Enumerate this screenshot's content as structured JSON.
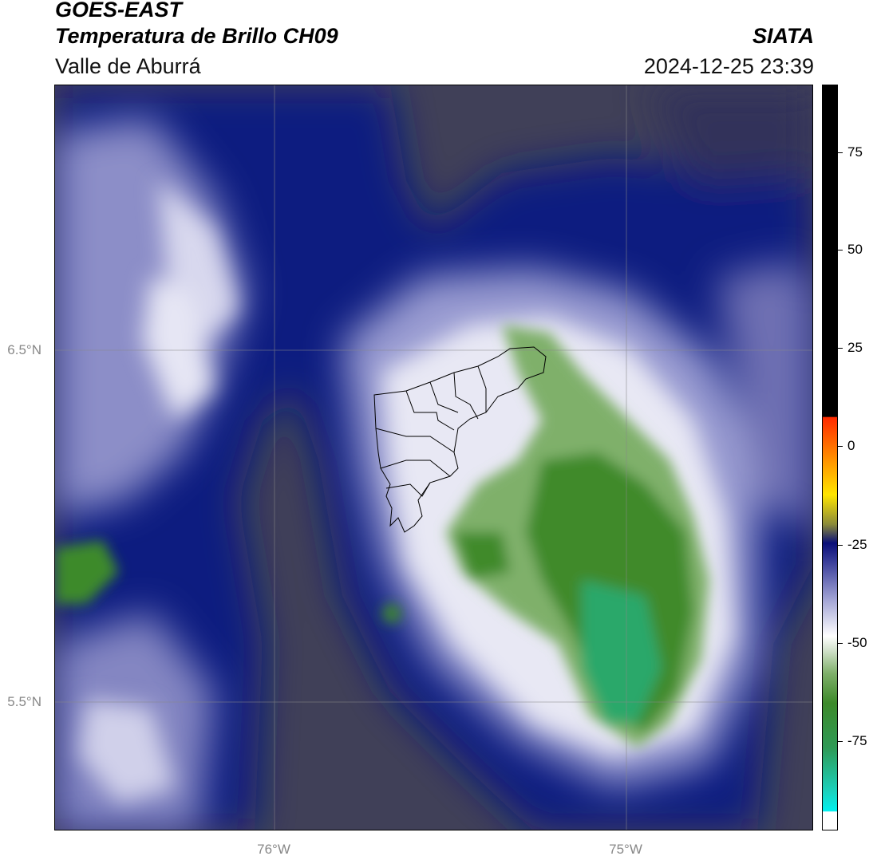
{
  "header": {
    "satellite": "GOES-EAST",
    "product": "Temperatura de Brillo CH09",
    "agency": "SIATA",
    "region": "Valle de Aburrá",
    "timestamp": "2024-12-25 23:39"
  },
  "map": {
    "lat_labels": [
      "6.5°N",
      "5.5°N"
    ],
    "lon_labels": [
      "76°W",
      "75°W"
    ]
  },
  "colorbar": {
    "tick_labels": [
      "75",
      "50",
      "25",
      "0",
      "-25",
      "-50",
      "-75"
    ],
    "tick_values": [
      75,
      50,
      25,
      0,
      -25,
      -50,
      -75
    ],
    "range": [
      -97,
      92
    ],
    "colors": {
      "warm": "#000000",
      "hot": "#ff2a00",
      "yellow": "#ffe600",
      "navy": "#0a0f78",
      "white": "#ffffff",
      "green": "#3d8a2a",
      "teal": "#1ad3c0",
      "cyan": "#00f0ee"
    }
  }
}
